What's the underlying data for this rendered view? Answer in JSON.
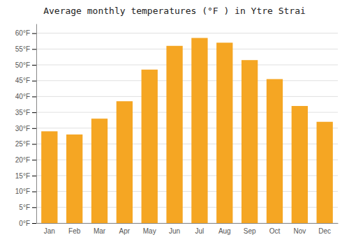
{
  "chart_data": {
    "type": "bar",
    "title": "Average monthly temperatures (°F ) in Ytre Strai",
    "categories": [
      "Jan",
      "Feb",
      "Mar",
      "Apr",
      "May",
      "Jun",
      "Jul",
      "Aug",
      "Sep",
      "Oct",
      "Nov",
      "Dec"
    ],
    "values": [
      29.0,
      28.0,
      33.0,
      38.5,
      48.5,
      56.0,
      58.5,
      57.0,
      51.5,
      45.5,
      37.0,
      32.0
    ],
    "color": "#F5A623",
    "ylim": [
      0,
      63
    ],
    "yticks": [
      {
        "value": 0,
        "label": "0°F"
      },
      {
        "value": 5,
        "label": "5°F"
      },
      {
        "value": 10,
        "label": "10°F"
      },
      {
        "value": 15,
        "label": "15°F"
      },
      {
        "value": 20,
        "label": "20°F"
      },
      {
        "value": 25,
        "label": "25°F"
      },
      {
        "value": 30,
        "label": "30°F"
      },
      {
        "value": 35,
        "label": "35°F"
      },
      {
        "value": 40,
        "label": "40°F"
      },
      {
        "value": 45,
        "label": "45°F"
      },
      {
        "value": 50,
        "label": "50°F"
      },
      {
        "value": 55,
        "label": "55°F"
      },
      {
        "value": 60,
        "label": "60°F"
      }
    ],
    "grid": true
  }
}
